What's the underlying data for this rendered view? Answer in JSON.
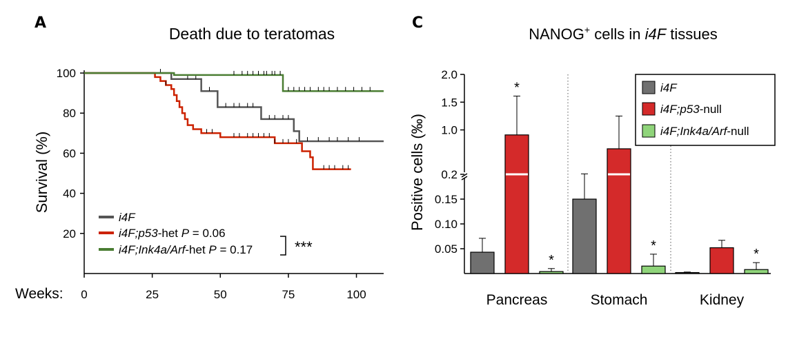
{
  "panels": {
    "a_letter": "A",
    "c_letter": "C"
  },
  "chart_data": [
    {
      "panel": "A",
      "type": "line",
      "title": "Death due to teratomas",
      "ylabel": "Survival (%)",
      "xlabel_prefix": "Weeks:",
      "xlim": [
        0,
        110
      ],
      "ylim": [
        0,
        100
      ],
      "x_ticks": [
        "0",
        "25",
        "50",
        "75",
        "100"
      ],
      "y_ticks": [
        "20",
        "40",
        "60",
        "80",
        "100"
      ],
      "grid": false,
      "legend_position": "bottom-left",
      "series": [
        {
          "name": "i4F",
          "name_suffix": "",
          "stat": "",
          "color": "#555555",
          "steps": [
            [
              0,
              100
            ],
            [
              25,
              100
            ],
            [
              32,
              97
            ],
            [
              43,
              91
            ],
            [
              49,
              83
            ],
            [
              65,
              77
            ],
            [
              77,
              71
            ],
            [
              79,
              66
            ],
            [
              110,
              66
            ]
          ],
          "censor": [
            28,
            38,
            41,
            46,
            52,
            55,
            57,
            60,
            62,
            68,
            70,
            73,
            75,
            82,
            86,
            90,
            93,
            97,
            101
          ]
        },
        {
          "name": "i4F;p53",
          "name_suffix": "-het",
          "stat": "P = 0.06",
          "color": "#cc2200",
          "steps": [
            [
              0,
              100
            ],
            [
              25,
              100
            ],
            [
              26,
              98
            ],
            [
              28,
              96
            ],
            [
              30,
              94
            ],
            [
              32,
              92
            ],
            [
              33,
              89
            ],
            [
              34,
              86
            ],
            [
              35,
              83
            ],
            [
              36,
              80
            ],
            [
              37,
              77
            ],
            [
              38,
              74
            ],
            [
              40,
              72
            ],
            [
              43,
              70
            ],
            [
              50,
              68
            ],
            [
              70,
              65
            ],
            [
              80,
              61
            ],
            [
              83,
              58
            ],
            [
              84,
              52
            ],
            [
              98,
              52
            ]
          ],
          "censor": [
            30,
            45,
            47,
            55,
            57,
            60,
            62,
            64,
            66,
            68,
            70,
            73,
            75,
            78,
            88,
            90,
            92,
            95,
            97
          ]
        },
        {
          "name": "i4F;Ink4a/Arf",
          "name_suffix": "-het",
          "stat": "P = 0.17",
          "color": "#4a7d32",
          "steps": [
            [
              0,
              100
            ],
            [
              25,
              100
            ],
            [
              33,
              99
            ],
            [
              73,
              91
            ],
            [
              110,
              91
            ]
          ],
          "censor": [
            55,
            58,
            60,
            62,
            64,
            66,
            67,
            69,
            70,
            72,
            75,
            77,
            79,
            81,
            83,
            86,
            88,
            90,
            93,
            96,
            99,
            102,
            105
          ]
        }
      ],
      "significance": "***"
    },
    {
      "panel": "C",
      "type": "bar",
      "title_parts": [
        "NANOG",
        "+",
        " cells in ",
        "i4F",
        " tissues"
      ],
      "ylabel": "Positive cells (‰)",
      "categories": [
        "Pancreas",
        "Stomach",
        "Kidney"
      ],
      "y_ticks_lower": [
        "0.05",
        "0.10",
        "0.15",
        "0.2"
      ],
      "y_ticks_upper": [
        "1.0",
        "1.5",
        "2.0"
      ],
      "ylim_lower": [
        0,
        0.2
      ],
      "ylim_upper": [
        0.2,
        2.0
      ],
      "axis_break": true,
      "legend_position": "top-right",
      "series": [
        {
          "name": "i4F",
          "name_suffix": "",
          "color": "#707070",
          "values": [
            0.043,
            0.15,
            0.002
          ],
          "errors": [
            0.028,
            0.058,
            0.001
          ],
          "significant": [
            false,
            false,
            false
          ]
        },
        {
          "name": "i4F;p53",
          "name_suffix": "-null",
          "color": "#d42a2a",
          "values": [
            0.91,
            0.66,
            0.052
          ],
          "errors": [
            0.7,
            0.59,
            0.015
          ],
          "significant": [
            true,
            false,
            false
          ]
        },
        {
          "name": "i4F;Ink4a/Arf",
          "name_suffix": "-null",
          "color": "#8fd47a",
          "values": [
            0.004,
            0.015,
            0.008
          ],
          "errors": [
            0.006,
            0.024,
            0.014
          ],
          "significant": [
            true,
            true,
            true
          ]
        }
      ],
      "significance_mark": "*"
    }
  ]
}
